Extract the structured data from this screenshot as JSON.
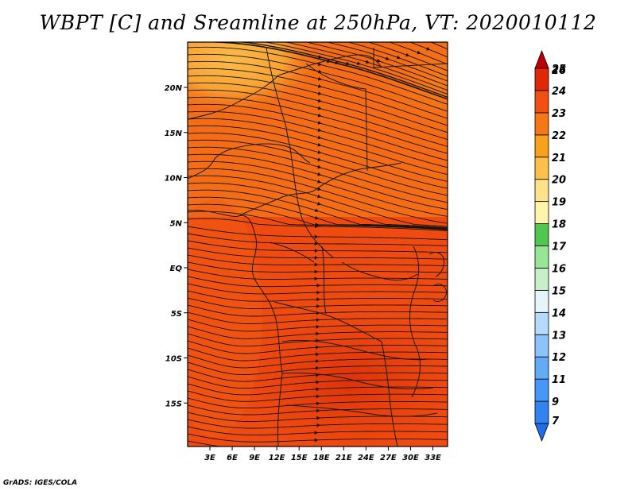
{
  "title": "WBPT [C] and Sreamline at 250hPa, VT: 2020010112",
  "credit": "GrADS: IGES/COLA",
  "map": {
    "lat_ticks": [
      {
        "value": 20,
        "label": "20N"
      },
      {
        "value": 15,
        "label": "15N"
      },
      {
        "value": 10,
        "label": "10N"
      },
      {
        "value": 5,
        "label": "5N"
      },
      {
        "value": 0,
        "label": "EQ"
      },
      {
        "value": -5,
        "label": "5S"
      },
      {
        "value": -10,
        "label": "10S"
      },
      {
        "value": -15,
        "label": "15S"
      }
    ],
    "lon_ticks": [
      {
        "value": 3,
        "label": "3E"
      },
      {
        "value": 6,
        "label": "6E"
      },
      {
        "value": 9,
        "label": "9E"
      },
      {
        "value": 12,
        "label": "12E"
      },
      {
        "value": 15,
        "label": "15E"
      },
      {
        "value": 18,
        "label": "18E"
      },
      {
        "value": 21,
        "label": "21E"
      },
      {
        "value": 24,
        "label": "24E"
      },
      {
        "value": 27,
        "label": "27E"
      },
      {
        "value": 30,
        "label": "30E"
      },
      {
        "value": 33,
        "label": "33E"
      }
    ]
  },
  "colorbar": {
    "labels": [
      "7",
      "9",
      "11",
      "12",
      "13",
      "14",
      "15",
      "16",
      "17",
      "18",
      "19",
      "20",
      "21",
      "22",
      "23",
      "24",
      "25",
      "26"
    ],
    "colors": [
      "#1e6ee6",
      "#3282f0",
      "#4696f5",
      "#64aaf5",
      "#8cc3fa",
      "#b4dcfa",
      "#e6f5fa",
      "#c8f0c8",
      "#96e696",
      "#50c850",
      "#fff5aa",
      "#fde28a",
      "#fbc14a",
      "#f7a21a",
      "#f57814",
      "#f25010",
      "#e02808",
      "#c00000"
    ]
  }
}
